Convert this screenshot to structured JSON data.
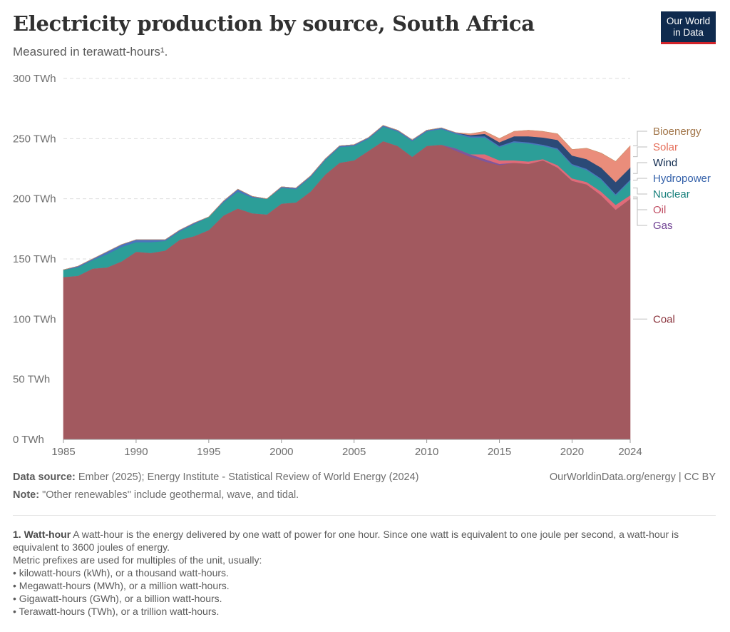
{
  "header": {
    "title": "Electricity production by source, South Africa",
    "subtitle": "Measured in terawatt-hours¹.",
    "logo_line1": "Our World",
    "logo_line2": "in Data"
  },
  "footer": {
    "source_label": "Data source:",
    "source_text": "Ember (2025); Energy Institute - Statistical Review of World Energy (2024)",
    "credit": "OurWorldinData.org/energy | CC BY",
    "note_label": "Note:",
    "note_text": "\"Other renewables\" include geothermal, wave, and tidal."
  },
  "footnote": {
    "number": "1.",
    "term": "Watt-hour",
    "definition": "A watt-hour is the energy delivered by one watt of power for one hour. Since one watt is equivalent to one joule per second, a watt-hour is equivalent to 3600 joules of energy.",
    "prefix_intro": "Metric prefixes are used for multiples of the unit, usually:",
    "prefixes": [
      "• kilowatt-hours (kWh), or a thousand watt-hours.",
      "• Megawatt-hours (MWh), or a million watt-hours.",
      "• Gigawatt-hours (GWh), or a billion watt-hours.",
      "• Terawatt-hours (TWh), or a trillion watt-hours."
    ]
  },
  "chart_data": {
    "type": "area",
    "stacked": true,
    "title": "Electricity production by source, South Africa",
    "ylabel": "TWh",
    "ylim": [
      0,
      300
    ],
    "yticks": [
      0,
      50,
      100,
      150,
      200,
      250,
      300
    ],
    "ytick_labels": [
      "0 TWh",
      "50 TWh",
      "100 TWh",
      "150 TWh",
      "200 TWh",
      "250 TWh",
      "300 TWh"
    ],
    "xticks": [
      1985,
      1990,
      1995,
      2000,
      2005,
      2010,
      2015,
      2020,
      2024
    ],
    "xtick_labels": [
      "1985",
      "1990",
      "1995",
      "2000",
      "2005",
      "2010",
      "2015",
      "2020",
      "2024"
    ],
    "x": [
      1985,
      1986,
      1987,
      1988,
      1989,
      1990,
      1991,
      1992,
      1993,
      1994,
      1995,
      1996,
      1997,
      1998,
      1999,
      2000,
      2001,
      2002,
      2003,
      2004,
      2005,
      2006,
      2007,
      2008,
      2009,
      2010,
      2011,
      2012,
      2013,
      2014,
      2015,
      2016,
      2017,
      2018,
      2019,
      2020,
      2021,
      2022,
      2023,
      2024
    ],
    "series": [
      {
        "name": "Coal",
        "color": "#a2595f",
        "label_color": "#883039",
        "values": [
          135,
          136,
          142,
          143,
          148,
          156,
          155,
          157,
          166,
          169,
          174,
          186,
          192,
          188,
          187,
          196,
          197,
          206,
          220,
          230,
          232,
          240,
          248,
          244,
          235,
          244,
          245,
          240,
          235,
          231,
          228,
          230,
          229,
          232,
          226,
          215,
          212,
          203,
          191,
          200
        ]
      },
      {
        "name": "Gas",
        "color": "#7e579c",
        "label_color": "#6d3e91",
        "values": [
          0,
          0,
          0,
          0,
          0,
          0,
          0,
          0,
          0,
          0,
          0,
          0,
          0,
          0,
          0,
          0,
          0,
          0,
          0,
          0,
          0,
          0,
          0,
          0,
          0,
          0,
          0,
          2,
          2,
          2,
          1,
          0,
          0,
          0,
          0,
          0,
          0,
          0,
          0,
          0
        ]
      },
      {
        "name": "Oil",
        "color": "#e06b78",
        "label_color": "#c15065",
        "values": [
          0,
          0,
          0,
          0,
          0,
          0,
          0,
          0,
          0,
          0,
          0,
          0,
          0,
          0,
          0,
          0,
          0,
          0,
          0,
          0,
          0,
          0,
          0,
          0,
          0,
          0,
          0,
          0,
          0,
          4,
          3,
          2,
          2,
          1,
          2,
          2,
          2,
          3,
          4,
          3
        ]
      },
      {
        "name": "Nuclear",
        "color": "#2c9e98",
        "label_color": "#18807c",
        "values": [
          6,
          7,
          7,
          11,
          12,
          8,
          9,
          8,
          7,
          10,
          11,
          11,
          14,
          13,
          13,
          13,
          11,
          12,
          12,
          13,
          12,
          10,
          12,
          12,
          13,
          12,
          13,
          12,
          14,
          14,
          11,
          15,
          15,
          11,
          13,
          11,
          10,
          10,
          8,
          12
        ]
      },
      {
        "name": "Hydropower",
        "color": "#4a74bd",
        "label_color": "#3360a9",
        "values": [
          0,
          1,
          1,
          2,
          2,
          2,
          2,
          1,
          1,
          1,
          0,
          1,
          2,
          1,
          0,
          1,
          1,
          1,
          1,
          1,
          1,
          1,
          1,
          1,
          1,
          1,
          1,
          1,
          1,
          1,
          1,
          1,
          1,
          1,
          1,
          1,
          1,
          1,
          1,
          1
        ]
      },
      {
        "name": "Wind",
        "color": "#2b4a77",
        "label_color": "#0f2a4e",
        "values": [
          0,
          0,
          0,
          0,
          0,
          0,
          0,
          0,
          0,
          0,
          0,
          0,
          0,
          0,
          0,
          0,
          0,
          0,
          0,
          0,
          0,
          0,
          0,
          0,
          0,
          0,
          0,
          0,
          1,
          2,
          3,
          4,
          5,
          6,
          7,
          7,
          8,
          9,
          10,
          10
        ]
      },
      {
        "name": "Solar",
        "color": "#ea8d7b",
        "label_color": "#e56e5a",
        "values": [
          0,
          0,
          0,
          0,
          0,
          0,
          0,
          0,
          0,
          0,
          0,
          0,
          0,
          0,
          0,
          0,
          0,
          0,
          0,
          0,
          0,
          0,
          0,
          0,
          0,
          0,
          0,
          0,
          1,
          2,
          3,
          4,
          5,
          5,
          5,
          5,
          9,
          12,
          17,
          18
        ]
      },
      {
        "name": "Bioenergy",
        "color": "#c4946a",
        "label_color": "#a2764a",
        "values": [
          0,
          0,
          0,
          0,
          0,
          0,
          0,
          0,
          0,
          0,
          0,
          0,
          0,
          0,
          0,
          0,
          0,
          0,
          0,
          0,
          0,
          0,
          0,
          0,
          0,
          0,
          0,
          0,
          0,
          0,
          0,
          0,
          0,
          0,
          0,
          0,
          0,
          0,
          0,
          0
        ]
      }
    ],
    "legend_position": "right"
  }
}
